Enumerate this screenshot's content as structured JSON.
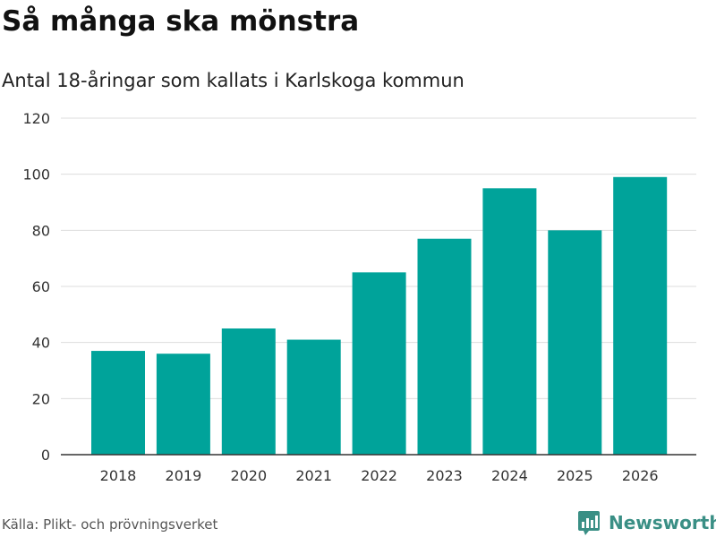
{
  "header": {
    "title": "Så många ska mönstra",
    "subtitle": "Antal 18-åringar som kallats i Karlskoga kommun"
  },
  "footer": {
    "source": "Källa: Plikt- och prövningsverket",
    "brand": "Newsworthy"
  },
  "colors": {
    "bar": "#00a39a",
    "brand": "#3a8f85"
  },
  "chart_data": {
    "type": "bar",
    "title": "Så många ska mönstra",
    "subtitle": "Antal 18-åringar som kallats i Karlskoga kommun",
    "categories": [
      "2018",
      "2019",
      "2020",
      "2021",
      "2022",
      "2023",
      "2024",
      "2025",
      "2026"
    ],
    "values": [
      37,
      36,
      45,
      41,
      65,
      77,
      95,
      80,
      99
    ],
    "xlabel": "",
    "ylabel": "",
    "ylim": [
      0,
      120
    ],
    "yticks": [
      0,
      20,
      40,
      60,
      80,
      100,
      120
    ],
    "grid": true,
    "legend": "none"
  }
}
